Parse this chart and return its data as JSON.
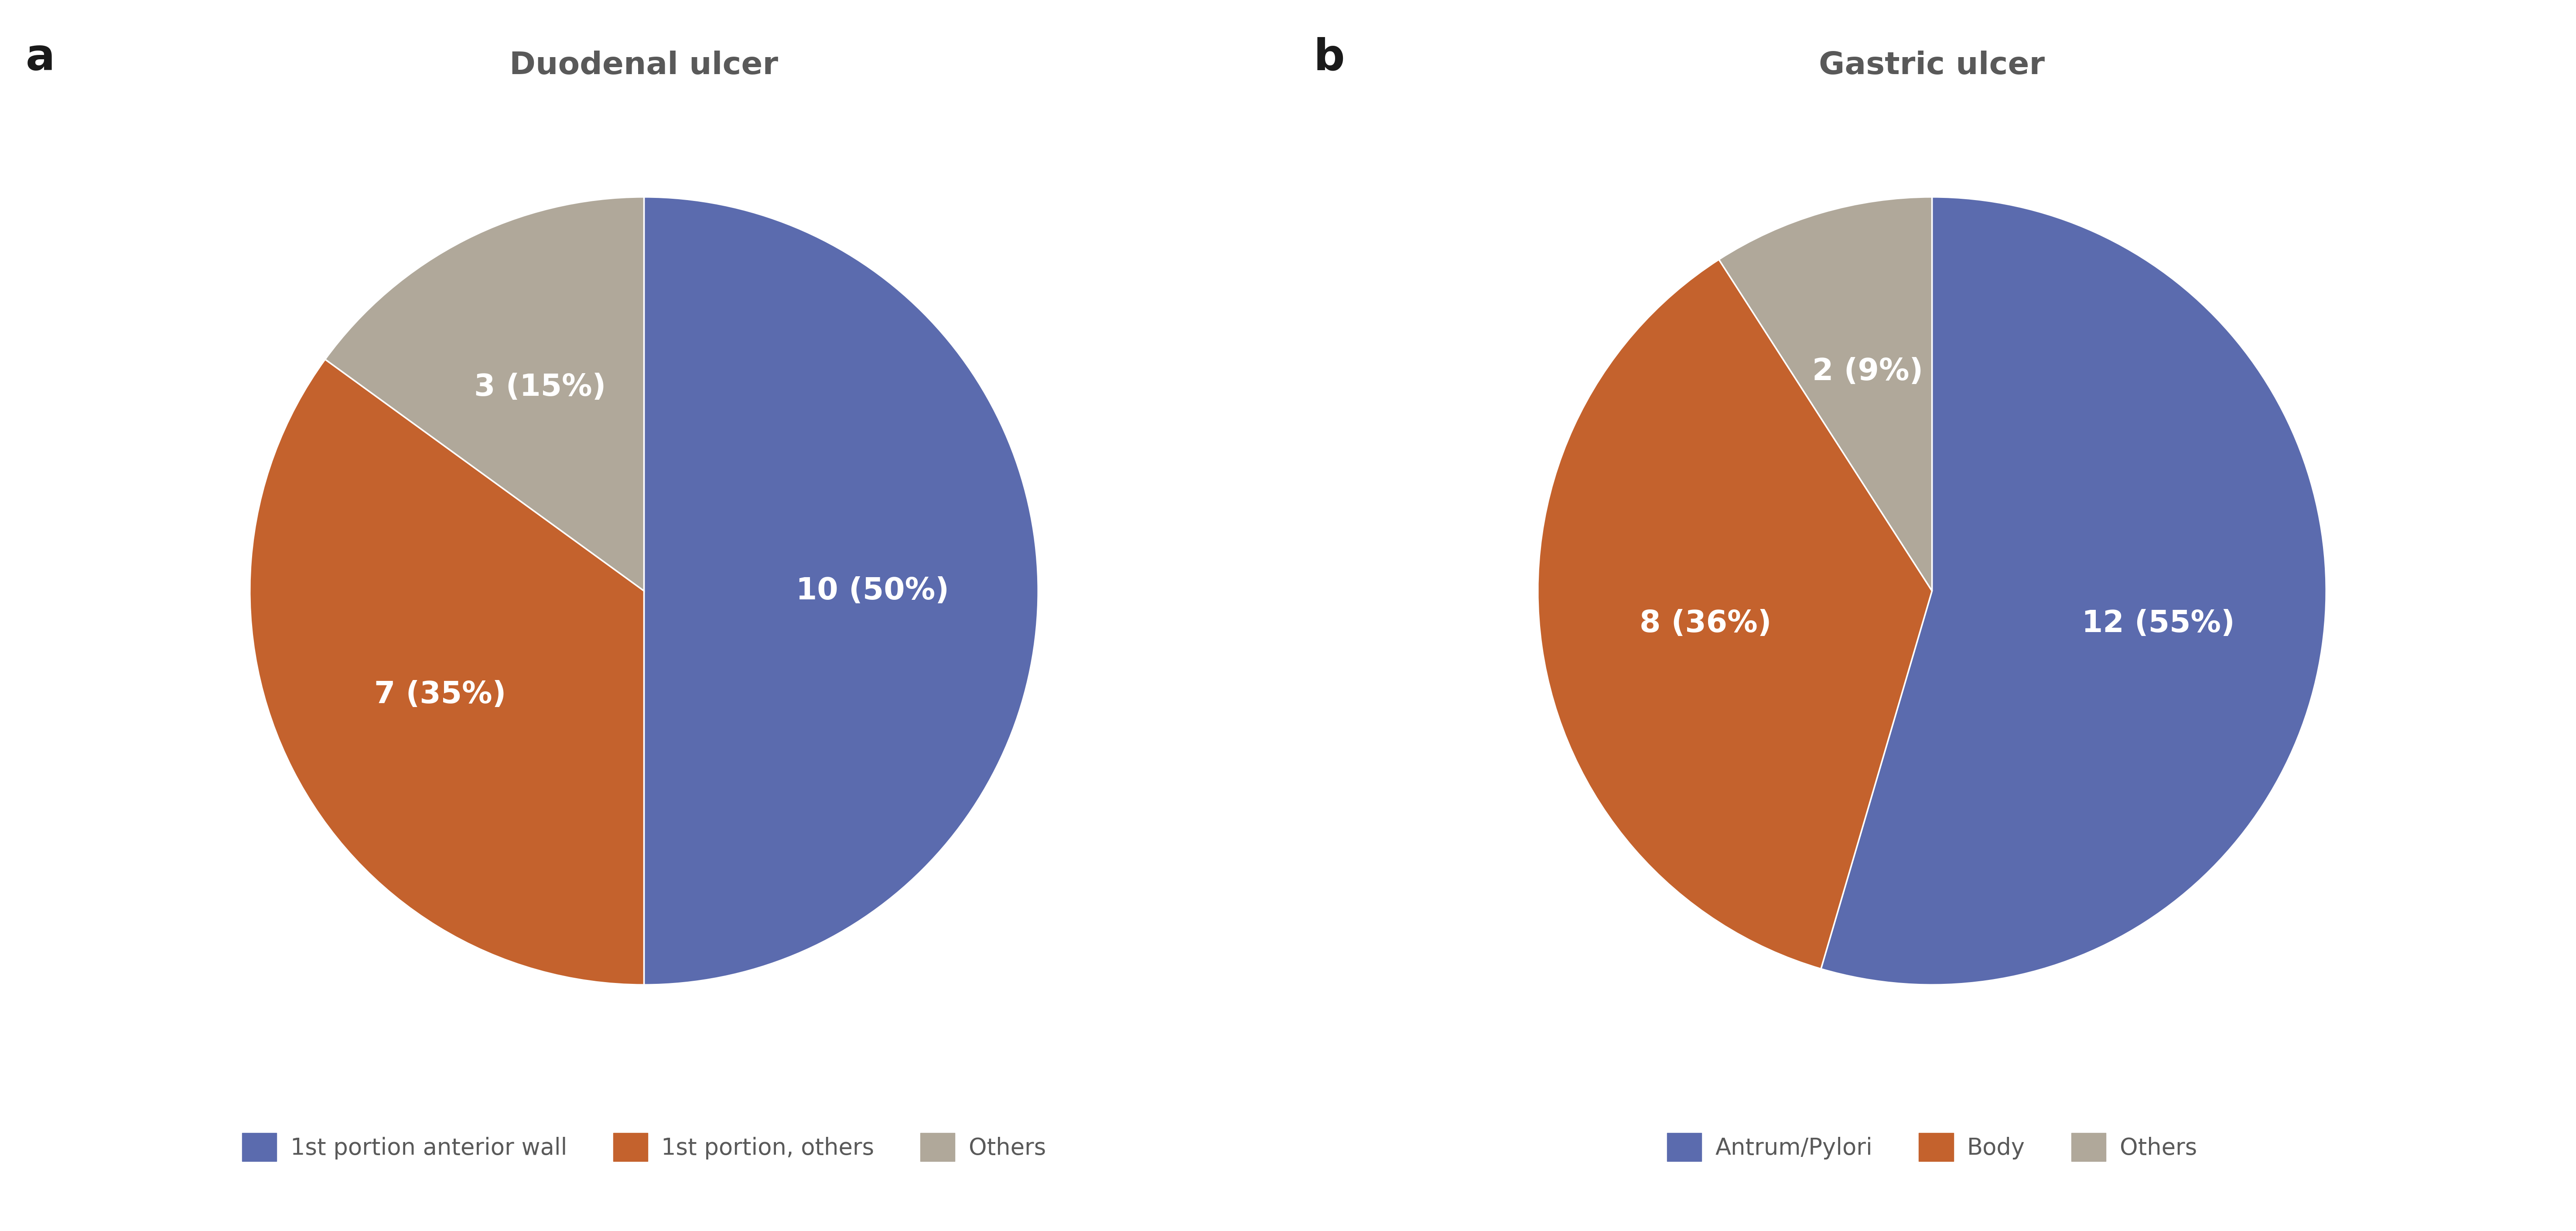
{
  "chart_a": {
    "title": "Duodenal ulcer",
    "values": [
      10,
      7,
      3
    ],
    "labels": [
      "10 (50%)",
      "7 (35%)",
      "3 (15%)"
    ],
    "colors": [
      "#5B6BAE",
      "#C4622D",
      "#B0A89A"
    ],
    "legend_labels": [
      "1st portion anterior wall",
      "1st portion, others",
      "Others"
    ],
    "startangle": 90
  },
  "chart_b": {
    "title": "Gastric ulcer",
    "values": [
      12,
      8,
      2
    ],
    "labels": [
      "12 (55%)",
      "8 (36%)",
      "2 (9%)"
    ],
    "colors": [
      "#5B6BAE",
      "#C4622D",
      "#B0A89A"
    ],
    "legend_labels": [
      "Antrum/Pylori",
      "Body",
      "Others"
    ],
    "startangle": 90
  },
  "label_a": "a",
  "label_b": "b",
  "title_color": "#595959",
  "label_color": "#1a1a1a",
  "text_color": "#ffffff",
  "title_fontsize": 52,
  "label_fontsize": 72,
  "slice_fontsize": 50,
  "legend_fontsize": 38,
  "background_color": "#ffffff"
}
